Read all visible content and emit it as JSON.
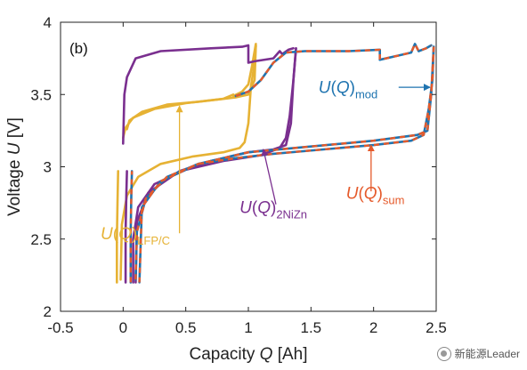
{
  "panel_label": "(b)",
  "watermark": "新能源Leader",
  "colors": {
    "LFP_C": "#e6b234",
    "NiZn": "#7a2f8f",
    "mod": "#1f74b0",
    "sum": "#e55a2b"
  },
  "chart_data": {
    "type": "line",
    "xlabel_parts": [
      "Capacity ",
      "Q",
      " [Ah]"
    ],
    "ylabel_parts": [
      "Voltage ",
      "U",
      " [V]"
    ],
    "xlim": [
      -0.5,
      2.5
    ],
    "ylim": [
      2,
      4
    ],
    "xticks": [
      -0.5,
      0,
      0.5,
      1,
      1.5,
      2,
      2.5
    ],
    "xtick_labels": [
      "-0.5",
      "0",
      "0.5",
      "1",
      "1.5",
      "2",
      "2.5"
    ],
    "yticks": [
      2,
      2.5,
      3,
      3.5,
      4
    ],
    "ytick_labels": [
      "2",
      "2.5",
      "3",
      "3.5",
      "4"
    ],
    "grid": false,
    "series": [
      {
        "key": "LFP_C",
        "label_main": "U(Q)",
        "label_sub": "LFP/C",
        "segments": [
          [
            [
              -0.05,
              2.2
            ],
            [
              -0.05,
              2.5
            ],
            [
              -0.045,
              2.75
            ],
            [
              -0.04,
              2.97
            ]
          ],
          [
            [
              -0.02,
              2.22
            ],
            [
              -0.01,
              2.6
            ],
            [
              0.03,
              2.8
            ],
            [
              0.12,
              2.93
            ],
            [
              0.3,
              3.02
            ],
            [
              0.55,
              3.07
            ],
            [
              0.8,
              3.1
            ],
            [
              0.93,
              3.13
            ],
            [
              0.97,
              3.17
            ],
            [
              1.0,
              3.3
            ],
            [
              1.02,
              3.55
            ],
            [
              1.05,
              3.72
            ],
            [
              1.06,
              3.84
            ]
          ],
          [
            [
              1.06,
              3.84
            ],
            [
              1.05,
              3.6
            ],
            [
              1.0,
              3.5
            ],
            [
              0.95,
              3.49
            ],
            [
              0.9,
              3.48
            ],
            [
              0.6,
              3.45
            ],
            [
              0.35,
              3.43
            ],
            [
              0.15,
              3.38
            ],
            [
              0.05,
              3.32
            ],
            [
              0.03,
              3.26
            ]
          ],
          [
            [
              0.0,
              3.2
            ],
            [
              0.02,
              3.27
            ],
            [
              0.08,
              3.34
            ],
            [
              0.25,
              3.4
            ],
            [
              0.5,
              3.44
            ],
            [
              0.8,
              3.47
            ],
            [
              0.88,
              3.5
            ]
          ],
          [
            [
              0.88,
              3.49
            ],
            [
              0.95,
              3.52
            ],
            [
              1.0,
              3.57
            ],
            [
              1.03,
              3.7
            ],
            [
              1.06,
              3.85
            ]
          ]
        ]
      },
      {
        "key": "NiZn",
        "label_main": "U(Q)",
        "label_sub": "2NiZn",
        "segments": [
          [
            [
              0.02,
              2.2
            ],
            [
              0.02,
              2.55
            ],
            [
              0.025,
              2.8
            ],
            [
              0.03,
              2.97
            ]
          ],
          [
            [
              0.08,
              2.2
            ],
            [
              0.08,
              2.5
            ],
            [
              0.12,
              2.72
            ],
            [
              0.25,
              2.88
            ],
            [
              0.5,
              2.98
            ],
            [
              0.8,
              3.04
            ],
            [
              1.1,
              3.08
            ],
            [
              1.25,
              3.13
            ],
            [
              1.3,
              3.2
            ],
            [
              1.33,
              3.35
            ],
            [
              1.36,
              3.6
            ],
            [
              1.38,
              3.82
            ]
          ],
          [
            [
              1.38,
              3.82
            ],
            [
              1.36,
              3.6
            ],
            [
              1.34,
              3.3
            ],
            [
              1.3,
              3.15
            ],
            [
              1.2,
              3.12
            ],
            [
              1.0,
              3.1
            ],
            [
              0.7,
              3.04
            ],
            [
              0.45,
              2.97
            ],
            [
              0.2,
              2.82
            ],
            [
              0.11,
              2.62
            ],
            [
              0.1,
              2.2
            ]
          ],
          [
            [
              0.0,
              3.16
            ],
            [
              0.01,
              3.5
            ],
            [
              0.03,
              3.62
            ],
            [
              0.1,
              3.75
            ],
            [
              0.3,
              3.8
            ],
            [
              0.7,
              3.82
            ],
            [
              0.95,
              3.83
            ],
            [
              1.0,
              3.84
            ],
            [
              1.0,
              3.72
            ],
            [
              1.05,
              3.73
            ],
            [
              1.2,
              3.75
            ],
            [
              1.25,
              3.8
            ],
            [
              1.27,
              3.78
            ],
            [
              1.32,
              3.81
            ],
            [
              1.36,
              3.82
            ]
          ]
        ]
      },
      {
        "key": "mod",
        "label_main": "U(Q)",
        "label_sub": "mod",
        "segments": [
          [
            [
              0.06,
              2.2
            ],
            [
              0.06,
              2.55
            ],
            [
              0.065,
              2.8
            ],
            [
              0.07,
              2.97
            ]
          ],
          [
            [
              0.1,
              2.22
            ],
            [
              0.11,
              2.55
            ],
            [
              0.18,
              2.78
            ],
            [
              0.35,
              2.93
            ],
            [
              0.6,
              3.02
            ],
            [
              0.9,
              3.06
            ],
            [
              1.2,
              3.09
            ],
            [
              1.6,
              3.12
            ],
            [
              2.0,
              3.15
            ],
            [
              2.3,
              3.18
            ],
            [
              2.4,
              3.22
            ],
            [
              2.44,
              3.4
            ],
            [
              2.47,
              3.6
            ],
            [
              2.48,
              3.83
            ]
          ],
          [
            [
              2.48,
              3.83
            ],
            [
              2.46,
              3.5
            ],
            [
              2.43,
              3.25
            ],
            [
              2.35,
              3.22
            ],
            [
              2.0,
              3.18
            ],
            [
              1.5,
              3.14
            ],
            [
              1.0,
              3.1
            ],
            [
              0.6,
              3.02
            ],
            [
              0.3,
              2.9
            ],
            [
              0.15,
              2.72
            ],
            [
              0.13,
              2.2
            ]
          ],
          [
            [
              0.9,
              3.49
            ],
            [
              1.0,
              3.52
            ],
            [
              1.1,
              3.6
            ],
            [
              1.2,
              3.72
            ],
            [
              1.3,
              3.79
            ],
            [
              1.45,
              3.8
            ],
            [
              1.8,
              3.8
            ],
            [
              2.05,
              3.81
            ],
            [
              2.05,
              3.74
            ],
            [
              2.2,
              3.77
            ],
            [
              2.3,
              3.79
            ],
            [
              2.33,
              3.85
            ],
            [
              2.36,
              3.8
            ],
            [
              2.42,
              3.82
            ],
            [
              2.46,
              3.84
            ]
          ]
        ]
      },
      {
        "key": "sum",
        "label_main": "U(Q)",
        "label_sub": "sum",
        "segments": [
          [
            [
              0.06,
              2.2
            ],
            [
              0.06,
              2.55
            ],
            [
              0.065,
              2.8
            ],
            [
              0.07,
              2.97
            ]
          ],
          [
            [
              0.1,
              2.22
            ],
            [
              0.11,
              2.55
            ],
            [
              0.18,
              2.78
            ],
            [
              0.35,
              2.93
            ],
            [
              0.6,
              3.02
            ],
            [
              0.9,
              3.06
            ],
            [
              1.2,
              3.09
            ],
            [
              1.6,
              3.12
            ],
            [
              2.0,
              3.15
            ],
            [
              2.3,
              3.18
            ],
            [
              2.4,
              3.22
            ],
            [
              2.44,
              3.4
            ],
            [
              2.47,
              3.6
            ],
            [
              2.48,
              3.83
            ]
          ],
          [
            [
              2.48,
              3.83
            ],
            [
              2.46,
              3.5
            ],
            [
              2.43,
              3.25
            ],
            [
              2.35,
              3.22
            ],
            [
              2.0,
              3.18
            ],
            [
              1.5,
              3.14
            ],
            [
              1.0,
              3.1
            ],
            [
              0.6,
              3.02
            ],
            [
              0.3,
              2.9
            ],
            [
              0.15,
              2.72
            ],
            [
              0.13,
              2.2
            ]
          ],
          [
            [
              0.9,
              3.49
            ],
            [
              1.0,
              3.52
            ],
            [
              1.1,
              3.6
            ],
            [
              1.2,
              3.72
            ],
            [
              1.3,
              3.79
            ],
            [
              1.45,
              3.8
            ],
            [
              1.8,
              3.8
            ],
            [
              2.05,
              3.81
            ],
            [
              2.05,
              3.74
            ],
            [
              2.2,
              3.77
            ],
            [
              2.3,
              3.79
            ],
            [
              2.33,
              3.85
            ],
            [
              2.36,
              3.8
            ],
            [
              2.42,
              3.82
            ],
            [
              2.46,
              3.84
            ]
          ]
        ]
      }
    ],
    "annotations": [
      {
        "series": "LFP_C",
        "text_main": "U(Q)",
        "text_sub": "LFP/C",
        "text_at": [
          -0.18,
          2.5
        ],
        "arrow_from": [
          0.45,
          2.54
        ],
        "arrow_to": [
          0.45,
          3.42
        ]
      },
      {
        "series": "NiZn",
        "text_main": "U(Q)",
        "text_sub": "2NiZn",
        "text_at": [
          0.93,
          2.68
        ],
        "arrow_from": [
          1.22,
          2.74
        ],
        "arrow_to": [
          1.12,
          3.12
        ]
      },
      {
        "series": "sum",
        "text_main": "U(Q)",
        "text_sub": "sum",
        "text_at": [
          1.78,
          2.78
        ],
        "arrow_from": [
          1.98,
          2.83
        ],
        "arrow_to": [
          1.98,
          3.15
        ]
      },
      {
        "series": "mod",
        "text_main": "U(Q)",
        "text_sub": "mod",
        "text_at": [
          1.56,
          3.51
        ],
        "arrow_from": [
          2.2,
          3.55
        ],
        "arrow_to": [
          2.45,
          3.55
        ]
      }
    ]
  }
}
